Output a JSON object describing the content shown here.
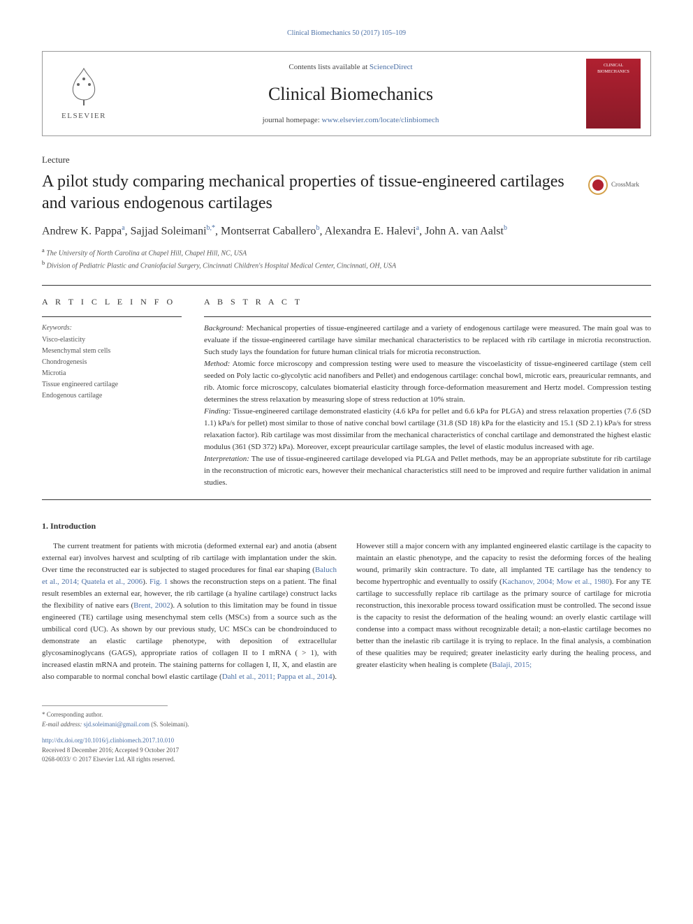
{
  "top_meta": {
    "citation": "Clinical Biomechanics 50 (2017) 105–109",
    "contents_prefix": "Contents lists available at ",
    "contents_link": "ScienceDirect",
    "journal_title": "Clinical Biomechanics",
    "homepage_prefix": "journal homepage: ",
    "homepage_link": "www.elsevier.com/locate/clinbiomech",
    "cover_line1": "CLINICAL",
    "cover_line2": "BIOMECHANICS"
  },
  "publisher_name": "ELSEVIER",
  "article_type": "Lecture",
  "article_title": "A pilot study comparing mechanical properties of tissue-engineered cartilages and various endogenous cartilages",
  "crossmark_label": "CrossMark",
  "authors_html": "Andrew K. Pappa<sup>a</sup>, Sajjad Soleimani<sup>b,*</sup>, Montserrat Caballero<sup>b</sup>, Alexandra E. Halevi<sup>a</sup>, John A. van Aalst<sup>b</sup>",
  "affiliations": [
    {
      "sup": "a",
      "text": "The University of North Carolina at Chapel Hill, Chapel Hill, NC, USA"
    },
    {
      "sup": "b",
      "text": "Division of Pediatric Plastic and Craniofacial Surgery, Cincinnati Children's Hospital Medical Center, Cincinnati, OH, USA"
    }
  ],
  "section_heads": {
    "article_info": "A R T I C L E  I N F O",
    "abstract": "A B S T R A C T"
  },
  "keywords_label": "Keywords:",
  "keywords": [
    "Visco-elasticity",
    "Mesenchymal stem cells",
    "Chondrogenesis",
    "Microtia",
    "Tissue engineered cartilage",
    "Endogenous cartilage"
  ],
  "abstract_paras": [
    {
      "label": "Background:",
      "text": " Mechanical properties of tissue-engineered cartilage and a variety of endogenous cartilage were measured. The main goal was to evaluate if the tissue-engineered cartilage have similar mechanical characteristics to be replaced with rib cartilage in microtia reconstruction. Such study lays the foundation for future human clinical trials for microtia reconstruction."
    },
    {
      "label": "Method:",
      "text": " Atomic force microscopy and compression testing were used to measure the viscoelasticity of tissue-engineered cartilage (stem cell seeded on Poly lactic co-glycolytic acid nanofibers and Pellet) and endogenous cartilage: conchal bowl, microtic ears, preauricular remnants, and rib. Atomic force microscopy, calculates biomaterial elasticity through force-deformation measurement and Hertz model. Compression testing determines the stress relaxation by measuring slope of stress reduction at 10% strain."
    },
    {
      "label": "Finding:",
      "text": " Tissue-engineered cartilage demonstrated elasticity (4.6 kPa for pellet and 6.6 kPa for PLGA) and stress relaxation properties (7.6 (SD 1.1) kPa/s for pellet) most similar to those of native conchal bowl cartilage (31.8 (SD 18) kPa for the elasticity and 15.1 (SD 2.1) kPa/s for stress relaxation factor). Rib cartilage was most dissimilar from the mechanical characteristics of conchal cartilage and demonstrated the highest elastic modulus (361 (SD 372) kPa). Moreover, except preauricular cartilage samples, the level of elastic modulus increased with age."
    },
    {
      "label": "Interpretation:",
      "text": " The use of tissue-engineered cartilage developed via PLGA and Pellet methods, may be an appropriate substitute for rib cartilage in the reconstruction of microtic ears, however their mechanical characteristics still need to be improved and require further validation in animal studies."
    }
  ],
  "intro_head": "1. Introduction",
  "intro_col1": "The current treatment for patients with microtia (deformed external ear) and anotia (absent external ear) involves harvest and sculpting of rib cartilage with implantation under the skin. Over time the reconstructed ear is subjected to staged procedures for final ear shaping (",
  "intro_ref1": "Baluch et al., 2014; Quatela et al., 2006",
  "intro_col1b": "). ",
  "intro_figref": "Fig. 1",
  "intro_col1c": " shows the reconstruction steps on a patient. The final result resembles an external ear, however, the rib cartilage (a hyaline cartilage) construct lacks the flexibility of native ears (",
  "intro_ref2": "Brent, 2002",
  "intro_col1d": "). A solution to this limitation may be found in tissue engineered (TE) cartilage using mesenchymal stem cells (MSCs) from a source such as the umbilical cord (UC). As shown by our previous study, UC MSCs can be chondroinduced to demonstrate an elastic cartilage phenotype, with deposition of extracellular glycosaminoglycans (GAGS), appropriate ratios of collagen II to I mRNA ( > 1), with increased elastin mRNA and protein. The staining patterns for ",
  "intro_col2a": "collagen I, II, X, and elastin are also comparable to normal conchal bowl elastic cartilage (",
  "intro_ref3": "Dahl et al., 2011; Pappa et al., 2014",
  "intro_col2b": "). However still a major concern with any implanted engineered elastic cartilage is the capacity to maintain an elastic phenotype, and the capacity to resist the deforming forces of the healing wound, primarily skin contracture. To date, all implanted TE cartilage has the tendency to become hypertrophic and eventually to ossify (",
  "intro_ref4": "Kachanov, 2004; Mow et al., 1980",
  "intro_col2c": "). For any TE cartilage to successfully replace rib cartilage as the primary source of cartilage for microtia reconstruction, this inexorable process toward ossification must be controlled. The second issue is the capacity to resist the deformation of the healing wound: an overly elastic cartilage will condense into a compact mass without recognizable detail; a non-elastic cartilage becomes no better than the inelastic rib cartilage it is trying to replace. In the final analysis, a combination of these qualities may be required; greater inelasticity early during the healing process, and greater elasticity when healing is complete (",
  "intro_ref5": "Balaji, 2015;",
  "footnote_corr": "* Corresponding author.",
  "footnote_email_label": "E-mail address: ",
  "footnote_email": "sjd.soleimani@gmail.com",
  "footnote_email_suffix": " (S. Soleimani).",
  "doi_link": "http://dx.doi.org/10.1016/j.clinbiomech.2017.10.010",
  "received_line": "Received 8 December 2016; Accepted 9 October 2017",
  "issn_line": "0268-0033/ © 2017 Elsevier Ltd. All rights reserved."
}
